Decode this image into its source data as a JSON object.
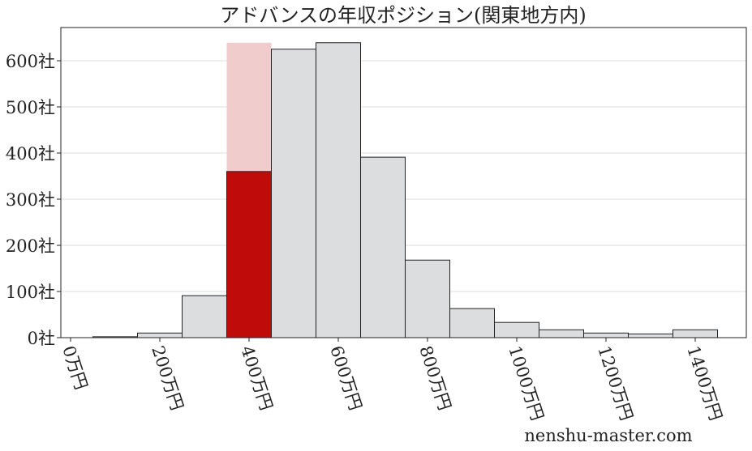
{
  "chart_data": {
    "type": "bar",
    "title": "アドバンスの年収ポジション(関東地方内)",
    "bins": [
      [
        50,
        150
      ],
      [
        150,
        250
      ],
      [
        250,
        350
      ],
      [
        350,
        450
      ],
      [
        450,
        550
      ],
      [
        550,
        650
      ],
      [
        650,
        750
      ],
      [
        750,
        850
      ],
      [
        850,
        950
      ],
      [
        950,
        1050
      ],
      [
        1050,
        1150
      ],
      [
        1150,
        1250
      ],
      [
        1250,
        1350
      ],
      [
        1350,
        1450
      ]
    ],
    "values": [
      2,
      10,
      91,
      360,
      625,
      639,
      391,
      168,
      63,
      33,
      17,
      10,
      8,
      17
    ],
    "highlight": {
      "bin_index": 3,
      "value": 360,
      "background_value": 639,
      "color": "#c00b0b",
      "background_color": "#f0cccc"
    },
    "bar_color": "#dcdddf",
    "xlim": [
      -20,
      1530
    ],
    "ylim": [
      0,
      670
    ],
    "x_ticks": [
      0,
      200,
      400,
      600,
      800,
      1000,
      1200,
      1400
    ],
    "x_tick_labels": [
      "0万円",
      "200万円",
      "400万円",
      "600万円",
      "800万円",
      "1000万円",
      "1200万円",
      "1400万円"
    ],
    "y_ticks": [
      0,
      100,
      200,
      300,
      400,
      500,
      600
    ],
    "y_tick_labels": [
      "0社",
      "100社",
      "200社",
      "300社",
      "400社",
      "500社",
      "600社"
    ],
    "grid": "horizontal",
    "xlabel": "",
    "ylabel": ""
  },
  "watermark": "nenshu-master.com"
}
